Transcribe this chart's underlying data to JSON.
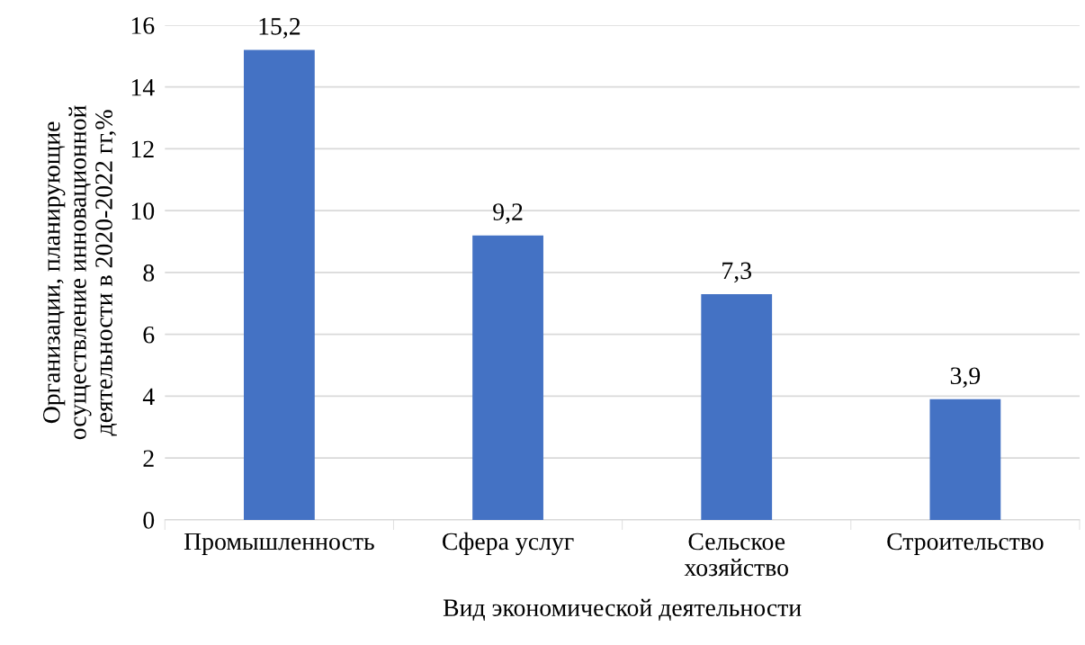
{
  "chart_data": {
    "type": "bar",
    "xlabel": "Вид экономической деятельности",
    "ylabel": "Организации, планирующие\nосуществление инновационной\nдеятельности в 2020-2022 гг,%",
    "categories": [
      "Промышленность",
      "Сфера услуг",
      "Сельское\nхозяйство",
      "Строительство"
    ],
    "values": [
      15.2,
      9.2,
      7.3,
      3.9
    ],
    "value_labels": [
      "15,2",
      "9,2",
      "7,3",
      "3,9"
    ],
    "color": "#4472c4",
    "ylim": [
      0,
      16
    ],
    "yticks": [
      0,
      2,
      4,
      6,
      8,
      10,
      12,
      14,
      16
    ],
    "grid": "y",
    "legend": false
  }
}
